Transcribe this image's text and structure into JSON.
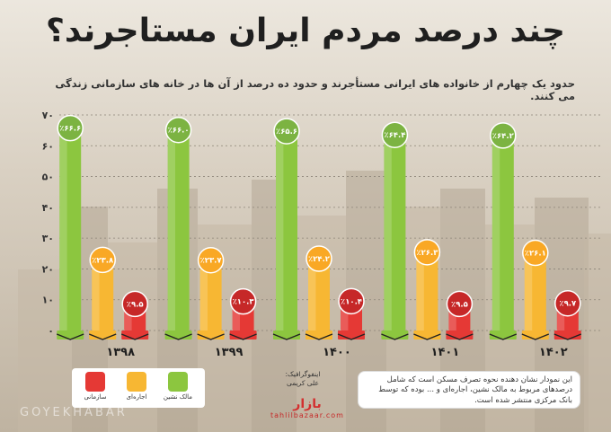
{
  "title": "چند درصد مردم ایران مستاجرند؟",
  "subtitle": "حدود یک چهارم از خانواده های ایرانی مستأجرند و حدود ده درصد از آن ها در خانه های سازمانی زندگی می کنند.",
  "legend": [
    {
      "label": "مالک نشین",
      "color": "#8cc63f"
    },
    {
      "label": "اجاره‌ای",
      "color": "#f7b733"
    },
    {
      "label": "سازمانی",
      "color": "#e53935"
    }
  ],
  "note": "این نمودار نشان دهنده نحوه تصرف مسکن است که شامل درصدهای مربوط به مالک نشین، اجاره‌ای و ... بوده که توسط بانک مرکزی منتشر شده است.",
  "credit": {
    "label": "اینفوگرافیک:",
    "author": "علی کریمی"
  },
  "brand": {
    "name": "بازار",
    "site": "tahlilbazaar.com"
  },
  "watermark": "GOYEKHABAR",
  "chart_data": {
    "type": "bar",
    "categories": [
      "۱۳۹۸",
      "۱۳۹۹",
      "۱۴۰۰",
      "۱۴۰۱",
      "۱۴۰۲"
    ],
    "series": [
      {
        "name": "مالک نشین",
        "color": "#8cc63f",
        "values": [
          66.6,
          66.0,
          65.6,
          64.4,
          64.2
        ],
        "labels": [
          "٪۶۶.۶",
          "٪۶۶.۰",
          "٪۶۵.۶",
          "٪۶۴.۴",
          "٪۶۴.۲"
        ]
      },
      {
        "name": "اجاره‌ای",
        "color": "#f7b733",
        "values": [
          23.8,
          23.7,
          24.2,
          26.3,
          26.1
        ],
        "labels": [
          "٪۲۳.۸",
          "٪۲۳.۷",
          "٪۲۴.۲",
          "٪۲۶.۳",
          "٪۲۶.۱"
        ]
      },
      {
        "name": "سازمانی",
        "color": "#e53935",
        "values": [
          9.5,
          10.3,
          10.4,
          9.5,
          9.7
        ],
        "labels": [
          "٪۹.۵",
          "٪۱۰.۳",
          "٪۱۰.۴",
          "٪۹.۵",
          "٪۹.۷"
        ]
      }
    ],
    "yticks": [
      0,
      10,
      20,
      30,
      40,
      50,
      60,
      70
    ],
    "ytick_labels": [
      "۰",
      "۱۰",
      "۲۰",
      "۳۰",
      "۴۰",
      "۵۰",
      "۶۰",
      "۷۰"
    ],
    "ylim": [
      0,
      70
    ],
    "grid": true,
    "legend_position": "bottom-left"
  }
}
